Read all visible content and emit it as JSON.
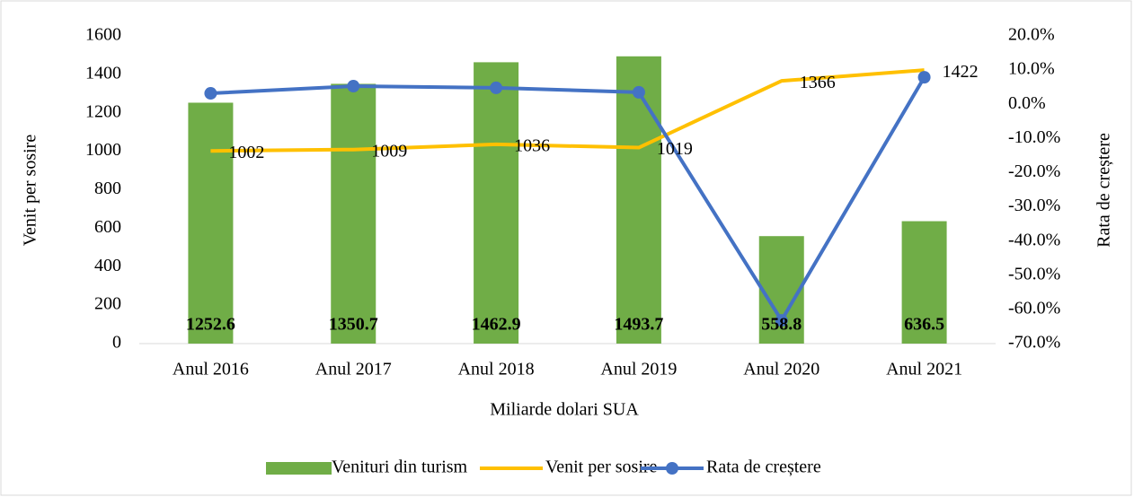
{
  "chart_data": {
    "type": "combo",
    "categories": [
      "Anul 2016",
      "Anul 2017",
      "Anul 2018",
      "Anul 2019",
      "Anul 2020",
      "Anul 2021"
    ],
    "xlabel": "Miliarde dolari SUA",
    "ylabel": "Venit per sosire",
    "y2label": "Rata de creștere",
    "ylim": [
      0,
      1600
    ],
    "yticks": [
      0,
      200,
      400,
      600,
      800,
      1000,
      1200,
      1400,
      1600
    ],
    "y2lim": [
      -70,
      20
    ],
    "y2ticks": [
      {
        "value": -70,
        "label": "-70.0%"
      },
      {
        "value": -60,
        "label": "-60.0%"
      },
      {
        "value": -50,
        "label": "-50.0%"
      },
      {
        "value": -40,
        "label": "-40.0%"
      },
      {
        "value": -30,
        "label": "-30.0%"
      },
      {
        "value": -20,
        "label": "-20.0%"
      },
      {
        "value": -10,
        "label": "-10.0%"
      },
      {
        "value": 0,
        "label": "0.0%"
      },
      {
        "value": 10,
        "label": "10.0%"
      },
      {
        "value": 20,
        "label": "20.0%"
      }
    ],
    "grid": false,
    "legend": "bottom",
    "series": [
      {
        "name": "Venituri din turism",
        "type": "bar",
        "color": "#70ad47",
        "data_labels": true,
        "values": [
          1252.6,
          1350.7,
          1462.9,
          1493.7,
          558.8,
          636.5
        ]
      },
      {
        "name": "Venit per sosire",
        "type": "line",
        "color": "#ffc000",
        "data_labels": true,
        "markers": false,
        "values": [
          1002,
          1009,
          1036,
          1019,
          1366,
          1422
        ]
      },
      {
        "name": "Rata de creștere",
        "type": "line",
        "axis": "y2",
        "color": "#4472c4",
        "data_labels": false,
        "markers": true,
        "values": [
          3.2,
          5.3,
          4.8,
          3.5,
          -63.2,
          7.9
        ]
      }
    ]
  }
}
